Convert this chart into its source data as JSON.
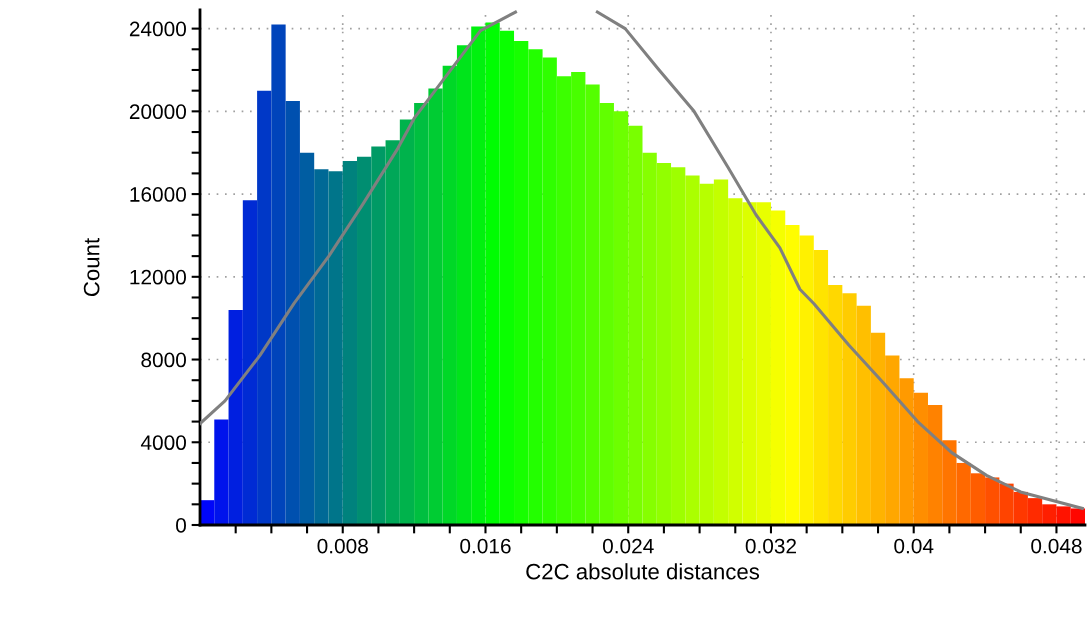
{
  "chart_data": {
    "type": "histogram",
    "xlabel": "C2C absolute distances",
    "ylabel": "Count",
    "bins": [
      0,
      0.0008,
      0.0016,
      0.0024,
      0.0032,
      0.004,
      0.0048,
      0.0056,
      0.0064,
      0.0072,
      0.008,
      0.0088,
      0.0096,
      0.0104,
      0.0112,
      0.012,
      0.0128,
      0.0136,
      0.0144,
      0.0152,
      0.016,
      0.0168,
      0.0176,
      0.0184,
      0.0192,
      0.02,
      0.0208,
      0.0216,
      0.0224,
      0.0232,
      0.024,
      0.0248,
      0.0256,
      0.0264,
      0.0272,
      0.028,
      0.0288,
      0.0296,
      0.0304,
      0.0312,
      0.032,
      0.0328,
      0.0336,
      0.0344,
      0.0352,
      0.036,
      0.0368,
      0.0376,
      0.0384,
      0.0392,
      0.04,
      0.0408,
      0.0416,
      0.0424,
      0.0432,
      0.044,
      0.0448,
      0.0456,
      0.0464,
      0.0472,
      0.048,
      0.0488,
      0.0496
    ],
    "values": [
      1200,
      5100,
      10400,
      15700,
      21000,
      24200,
      20500,
      18000,
      17200,
      17100,
      17600,
      17800,
      18300,
      18600,
      19600,
      20400,
      21100,
      22200,
      23200,
      24100,
      24300,
      23900,
      23400,
      23000,
      22600,
      21700,
      21900,
      21300,
      20400,
      20000,
      19300,
      18000,
      17500,
      17300,
      16900,
      16500,
      16700,
      15800,
      15600,
      15600,
      15200,
      14500,
      14000,
      13300,
      11600,
      11200,
      10600,
      9300,
      8200,
      7100,
      6400,
      5800,
      4100,
      3000,
      2500,
      2300,
      2000,
      1600,
      1300,
      1000,
      900,
      800
    ],
    "colors": [
      "#0006f9",
      "#0013ec",
      "#001fe0",
      "#002bd4",
      "#0038c7",
      "#0044bb",
      "#0050af",
      "#005da2",
      "#006996",
      "#00758a",
      "#00827d",
      "#008e71",
      "#009a65",
      "#00a758",
      "#00b34c",
      "#00bf40",
      "#00cc33",
      "#00d827",
      "#00e41b",
      "#00f10e",
      "#00fd02",
      "#0aff00",
      "#17ff00",
      "#23ff00",
      "#2fff00",
      "#3cff00",
      "#48ff00",
      "#54ff00",
      "#61ff00",
      "#6dff00",
      "#79ff00",
      "#86ff00",
      "#92ff00",
      "#9eff00",
      "#abff00",
      "#b7ff00",
      "#c3ff00",
      "#d0ff00",
      "#dcff00",
      "#e8ff00",
      "#f5ff00",
      "#fffd00",
      "#fff100",
      "#ffe400",
      "#ffd800",
      "#ffcc00",
      "#ffbf00",
      "#ffb300",
      "#ffa700",
      "#ff9a00",
      "#ff8e00",
      "#ff8200",
      "#ff7500",
      "#ff6900",
      "#ff5d00",
      "#ff5000",
      "#ff4400",
      "#ff3800",
      "#ff2b00",
      "#ff1f00",
      "#ff1300",
      "#ff0600"
    ],
    "series": [
      {
        "type": "line",
        "color": "#808080",
        "x": [
          0,
          0.0014,
          0.00336,
          0.00526,
          0.00722,
          0.00912,
          0.01108,
          0.01203,
          0.01572,
          0.01768,
          null,
          0.02227,
          0.02383,
          0.02573,
          0.02769,
          0.02959,
          0.03116,
          0.0325,
          0.03362,
          0.03441,
          0.03636,
          0.03827,
          0.04022,
          0.04213,
          0.04408,
          0.04599,
          0.04945
        ],
        "values": [
          4900,
          6000,
          8200,
          10700,
          13000,
          15500,
          18200,
          19700,
          23900,
          24800,
          null,
          24800,
          24000,
          22000,
          20000,
          17300,
          15000,
          13400,
          11400,
          10700,
          8700,
          6900,
          5000,
          3500,
          2400,
          1600,
          800
        ]
      }
    ],
    "xlim": [
      0,
      0.0496
    ],
    "ylim": [
      0,
      24900
    ],
    "xticks": [
      {
        "value": 0.002,
        "label": null
      },
      {
        "value": 0.004,
        "label": null
      },
      {
        "value": 0.006,
        "label": null
      },
      0.008,
      {
        "value": 0.01,
        "label": null
      },
      {
        "value": 0.012,
        "label": null
      },
      {
        "value": 0.014,
        "label": null
      },
      0.016,
      {
        "value": 0.018,
        "label": null
      },
      {
        "value": 0.02,
        "label": null
      },
      {
        "value": 0.022,
        "label": null
      },
      0.024,
      {
        "value": 0.026,
        "label": null
      },
      {
        "value": 0.028,
        "label": null
      },
      {
        "value": 0.03,
        "label": null
      },
      0.032,
      {
        "value": 0.034,
        "label": null
      },
      {
        "value": 0.036,
        "label": null
      },
      {
        "value": 0.038,
        "label": null
      },
      0.04,
      {
        "value": 0.042,
        "label": null
      },
      {
        "value": 0.044,
        "label": null
      },
      {
        "value": 0.046,
        "label": null
      },
      0.048
    ],
    "yticks": [
      0,
      {
        "value": 1000,
        "label": null
      },
      {
        "value": 2000,
        "label": null
      },
      {
        "value": 3000,
        "label": null
      },
      4000,
      {
        "value": 5000,
        "label": null
      },
      {
        "value": 6000,
        "label": null
      },
      {
        "value": 7000,
        "label": null
      },
      8000,
      {
        "value": 9000,
        "label": null
      },
      {
        "value": 10000,
        "label": null
      },
      {
        "value": 11000,
        "label": null
      },
      12000,
      {
        "value": 13000,
        "label": null
      },
      {
        "value": 14000,
        "label": null
      },
      {
        "value": 15000,
        "label": null
      },
      16000,
      {
        "value": 17000,
        "label": null
      },
      {
        "value": 18000,
        "label": null
      },
      {
        "value": 19000,
        "label": null
      },
      20000,
      {
        "value": 21000,
        "label": null
      },
      {
        "value": 22000,
        "label": null
      },
      {
        "value": 23000,
        "label": null
      },
      24000
    ],
    "grid": true,
    "line_style": "solid"
  }
}
